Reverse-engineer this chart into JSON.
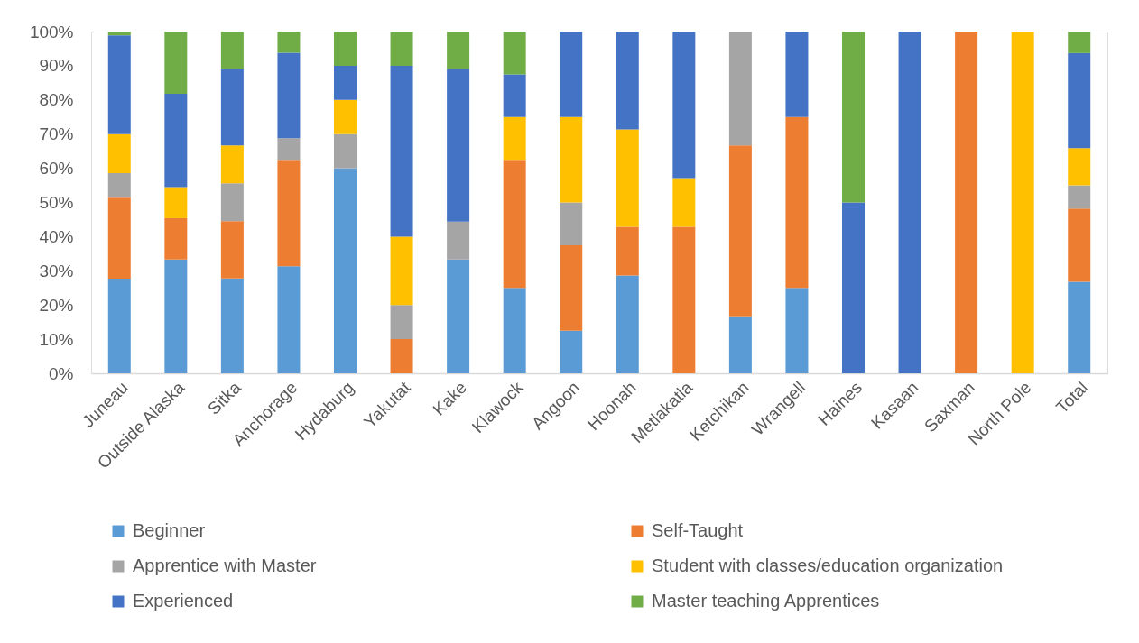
{
  "chart_data": {
    "type": "bar",
    "stacked": true,
    "grid": false,
    "legend": "bottom",
    "categories": [
      "Juneau",
      "Outside Alaska",
      "Sitka",
      "Anchorage",
      "Hydaburg",
      "Yakutat",
      "Kake",
      "Klawock",
      "Angoon",
      "Hoonah",
      "Metlakatla",
      "Ketchikan",
      "Wrangell",
      "Haines",
      "Kasaan",
      "Saxman",
      "North Pole",
      "Total"
    ],
    "series": [
      {
        "name": "Beginner",
        "color": "#5b9bd5",
        "values": [
          27.7,
          33.3,
          27.8,
          31.3,
          60,
          null,
          33.3,
          25,
          12.5,
          28.6,
          null,
          16.7,
          25,
          null,
          null,
          null,
          null,
          26.8
        ]
      },
      {
        "name": "Self-Taught",
        "color": "#ed7d31",
        "values": [
          23.7,
          12.1,
          16.7,
          31.2,
          null,
          10,
          null,
          37.5,
          25,
          14.3,
          42.9,
          50,
          50,
          null,
          null,
          100,
          null,
          21.4
        ]
      },
      {
        "name": "Apprentice with Master",
        "color": "#a5a5a5",
        "values": [
          7.2,
          null,
          11.1,
          6.3,
          10,
          10,
          11.1,
          null,
          12.5,
          null,
          null,
          33.3,
          null,
          null,
          null,
          null,
          null,
          6.8
        ]
      },
      {
        "name": "Student with classes/education organization",
        "color": "#ffc000",
        "values": [
          11.4,
          9.1,
          11.1,
          null,
          10,
          20,
          null,
          12.5,
          25,
          28.5,
          14.2,
          null,
          null,
          null,
          null,
          null,
          100,
          10.9
        ]
      },
      {
        "name": "Experienced",
        "color": "#4472c4",
        "values": [
          28.9,
          27.3,
          22.2,
          25,
          10,
          50,
          44.5,
          12.5,
          25,
          28.6,
          42.9,
          null,
          25,
          50,
          100,
          null,
          null,
          27.8
        ]
      },
      {
        "name": "Master teaching Apprentices",
        "color": "#70ad47",
        "values": [
          1.1,
          18.2,
          11.1,
          6.2,
          10,
          10,
          11.1,
          12.5,
          null,
          null,
          null,
          null,
          null,
          50,
          null,
          null,
          null,
          6.3
        ]
      }
    ],
    "ylim": [
      0,
      100
    ],
    "yticks": [
      {
        "value": 0,
        "label": "0%"
      },
      {
        "value": 10,
        "label": "10%"
      },
      {
        "value": 20,
        "label": "20%"
      },
      {
        "value": 30,
        "label": "30%"
      },
      {
        "value": 40,
        "label": "40%"
      },
      {
        "value": 50,
        "label": "50%"
      },
      {
        "value": 60,
        "label": "60%"
      },
      {
        "value": 70,
        "label": "70%"
      },
      {
        "value": 80,
        "label": "80%"
      },
      {
        "value": 90,
        "label": "90%"
      },
      {
        "value": 100,
        "label": "100%"
      }
    ]
  }
}
